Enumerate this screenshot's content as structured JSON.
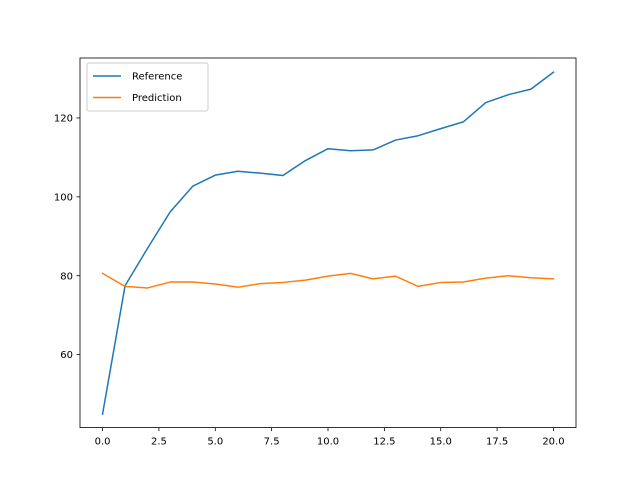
{
  "chart_data": {
    "type": "line",
    "title": "",
    "xlabel": "",
    "ylabel": "",
    "xlim": [
      -1.0,
      21.0
    ],
    "ylim": [
      41.5,
      135.2
    ],
    "x_ticks": [
      0.0,
      2.5,
      5.0,
      7.5,
      10.0,
      12.5,
      15.0,
      17.5,
      20.0
    ],
    "x_tick_labels": [
      "0.0",
      "2.5",
      "5.0",
      "7.5",
      "10.0",
      "12.5",
      "15.0",
      "17.5",
      "20.0"
    ],
    "y_ticks": [
      60,
      80,
      100,
      120
    ],
    "y_tick_labels": [
      "60",
      "80",
      "100",
      "120"
    ],
    "grid": false,
    "legend_position": "upper-left",
    "x": [
      0,
      1,
      2,
      3,
      4,
      5,
      6,
      7,
      8,
      9,
      10,
      11,
      12,
      13,
      14,
      15,
      16,
      17,
      18,
      19,
      20
    ],
    "series": [
      {
        "name": "Reference",
        "color": "#1f77b4",
        "values": [
          44.9,
          77.5,
          87.0,
          96.2,
          102.7,
          105.5,
          106.5,
          106.0,
          105.4,
          109.2,
          112.2,
          111.7,
          111.9,
          114.4,
          115.5,
          117.3,
          119.0,
          123.9,
          125.9,
          127.3,
          131.6
        ]
      },
      {
        "name": "Prediction",
        "color": "#ff7f0e",
        "values": [
          80.6,
          77.3,
          76.9,
          78.4,
          78.4,
          77.9,
          77.1,
          78.0,
          78.3,
          78.9,
          79.9,
          80.6,
          79.2,
          79.9,
          77.3,
          78.3,
          78.4,
          79.4,
          80.0,
          79.5,
          79.2
        ]
      }
    ]
  }
}
